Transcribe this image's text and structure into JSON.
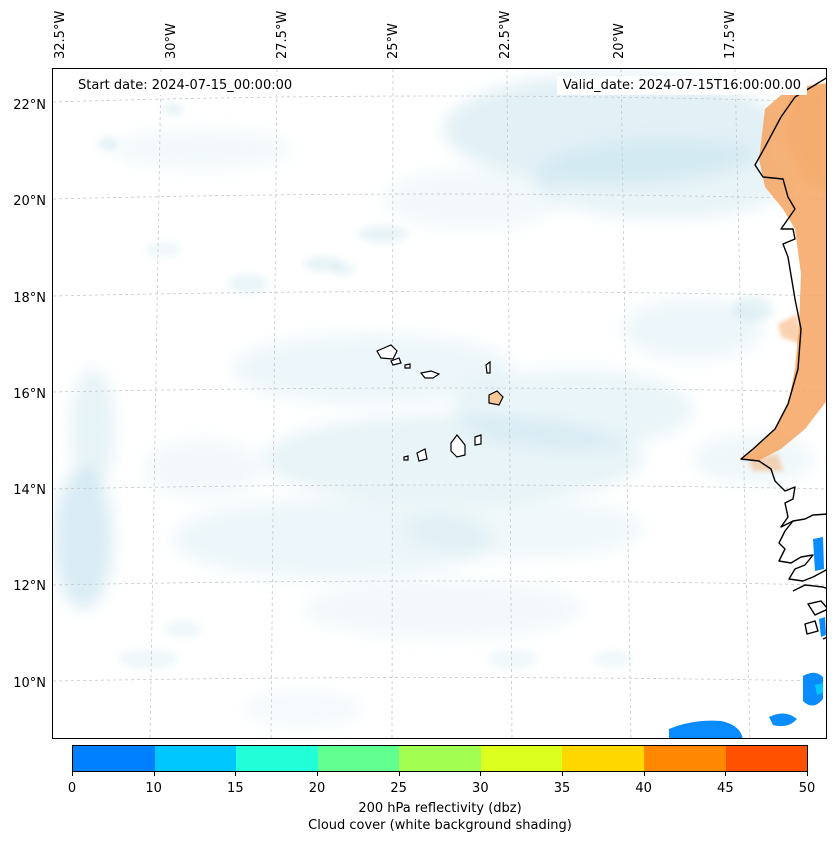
{
  "header": {
    "start_date": "Start date: 2024-07-15_00:00:00",
    "valid_date": "Valid_date: 2024-07-15T16:00:00.00"
  },
  "longitude_labels": [
    "32.5°W",
    "30°W",
    "27.5°W",
    "25°W",
    "22.5°W",
    "20°W",
    "17.5°W"
  ],
  "latitude_labels": [
    "22°N",
    "20°N",
    "18°N",
    "16°N",
    "14°N",
    "12°N",
    "10°N"
  ],
  "colorbar": {
    "ticks": [
      "0",
      "10",
      "15",
      "20",
      "25",
      "30",
      "35",
      "40",
      "45",
      "50"
    ],
    "colors": [
      "#0080ff",
      "#00c8ff",
      "#20ffd8",
      "#60ff90",
      "#a0ff50",
      "#dcff20",
      "#ffd800",
      "#ff8800",
      "#ff5000"
    ],
    "label_line1": "200 hPa reflectivity (dbz)",
    "label_line2": "Cloud cover (white background shading)"
  },
  "colors": {
    "land_shading": "#f4a460",
    "cloud_shading": "#add8e6",
    "coastline": "#000000",
    "gridline": "#bfbfbf"
  }
}
